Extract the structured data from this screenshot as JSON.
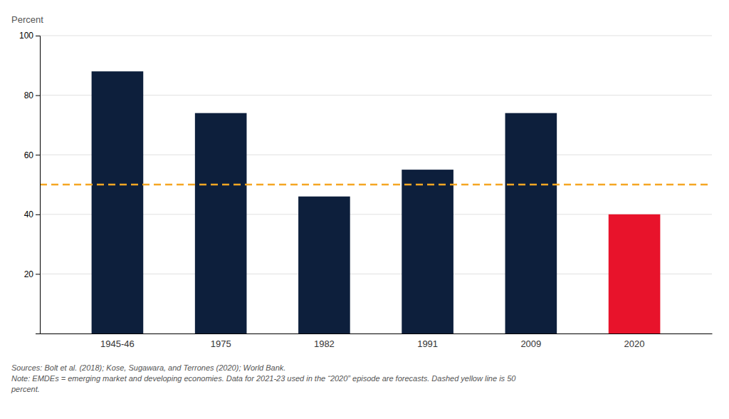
{
  "chart_data": {
    "type": "bar",
    "ylabel": "Percent",
    "categories": [
      "1945-46",
      "1975",
      "1982",
      "1991",
      "2009",
      "2020"
    ],
    "values": [
      88,
      74,
      46,
      55,
      74,
      40
    ],
    "colors": [
      "#0d1f3c",
      "#0d1f3c",
      "#0d1f3c",
      "#0d1f3c",
      "#0d1f3c",
      "#e8132b"
    ],
    "ylim": [
      0,
      100
    ],
    "yticks": [
      20,
      40,
      60,
      80,
      100
    ],
    "grid": true,
    "hline": {
      "y": 50,
      "color": "#f5a623",
      "line_style": "dashed"
    },
    "annotations": [
      "Sources: Bolt et al. (2018); Kose, Sugawara, and Terrones (2020); World Bank.\nNote: EMDEs = emerging market and developing economies. Data for 2021-23 used in the “2020” episode are forecasts. Dashed yellow line is 50\npercent."
    ]
  }
}
